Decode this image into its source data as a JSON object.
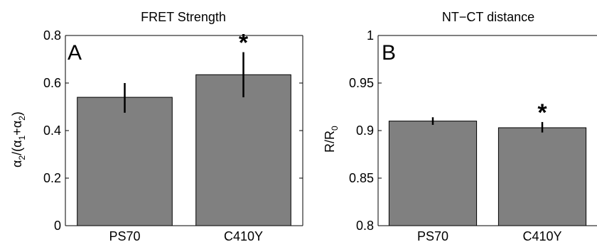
{
  "chart_data": [
    {
      "type": "bar",
      "title": "FRET Strength",
      "panel_label": "A",
      "ylabel": {
        "alpha": "α",
        "s2": "2",
        "slash": "/(",
        "s1": "1",
        "plus": "+",
        "close": ")"
      },
      "categories": [
        "PS70",
        "C410Y"
      ],
      "values": [
        0.54,
        0.635
      ],
      "error_low": [
        0.475,
        0.54
      ],
      "error_high": [
        0.6,
        0.73
      ],
      "significance": [
        "",
        "*"
      ],
      "ylim": [
        0,
        0.8
      ],
      "yticks": [
        0,
        0.2,
        0.4,
        0.6,
        0.8
      ],
      "ytick_labels": [
        "0",
        "0.2",
        "0.4",
        "0.6",
        "0.8"
      ],
      "bar_color": "#808080",
      "grid": false
    },
    {
      "type": "bar",
      "title": "NT−CT distance",
      "panel_label": "B",
      "ylabel": {
        "main": "R/R",
        "sub": "0"
      },
      "categories": [
        "PS70",
        "C410Y"
      ],
      "values": [
        0.91,
        0.903
      ],
      "error_low": [
        0.906,
        0.898
      ],
      "error_high": [
        0.914,
        0.909
      ],
      "significance": [
        "",
        "*"
      ],
      "ylim": [
        0.8,
        1
      ],
      "yticks": [
        0.8,
        0.85,
        0.9,
        0.95,
        1
      ],
      "ytick_labels": [
        "0.8",
        "0.85",
        "0.9",
        "0.95",
        "1"
      ],
      "bar_color": "#808080",
      "grid": false
    }
  ]
}
